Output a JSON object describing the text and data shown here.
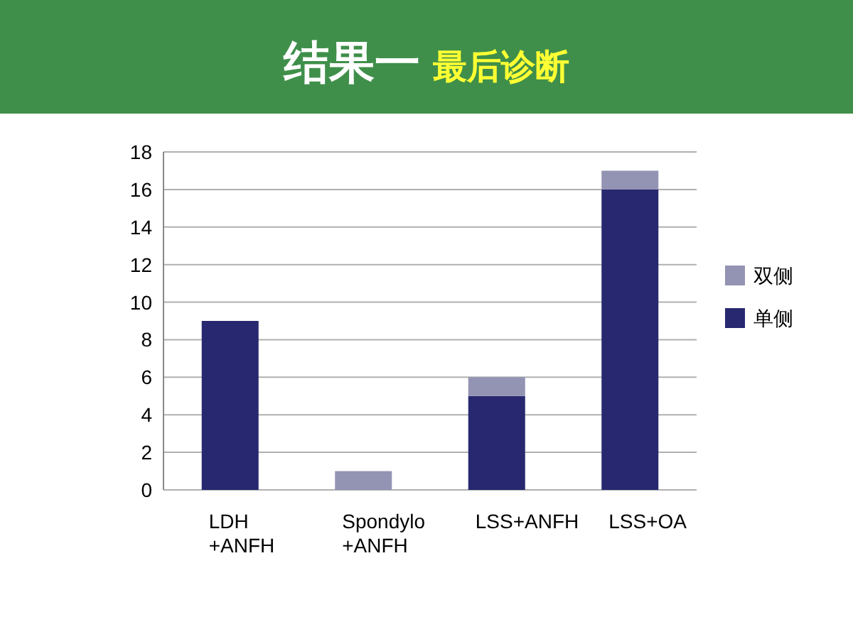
{
  "chart_data": {
    "type": "bar",
    "title": "结果一",
    "subtitle": "最后诊断",
    "stacked": true,
    "categories": [
      "LDH +ANFH",
      "Spondylo +ANFH",
      "LSS+ANFH",
      "LSS+OA"
    ],
    "series": [
      {
        "name": "单侧",
        "color": "#27286f",
        "values": [
          9,
          0,
          5,
          16
        ]
      },
      {
        "name": "双侧",
        "color": "#9393b3",
        "values": [
          0,
          1,
          1,
          1
        ]
      }
    ],
    "ylim": [
      0,
      18
    ],
    "yticks": [
      0,
      2,
      4,
      6,
      8,
      10,
      12,
      14,
      16,
      18
    ],
    "grid": "y",
    "legend": "right"
  }
}
